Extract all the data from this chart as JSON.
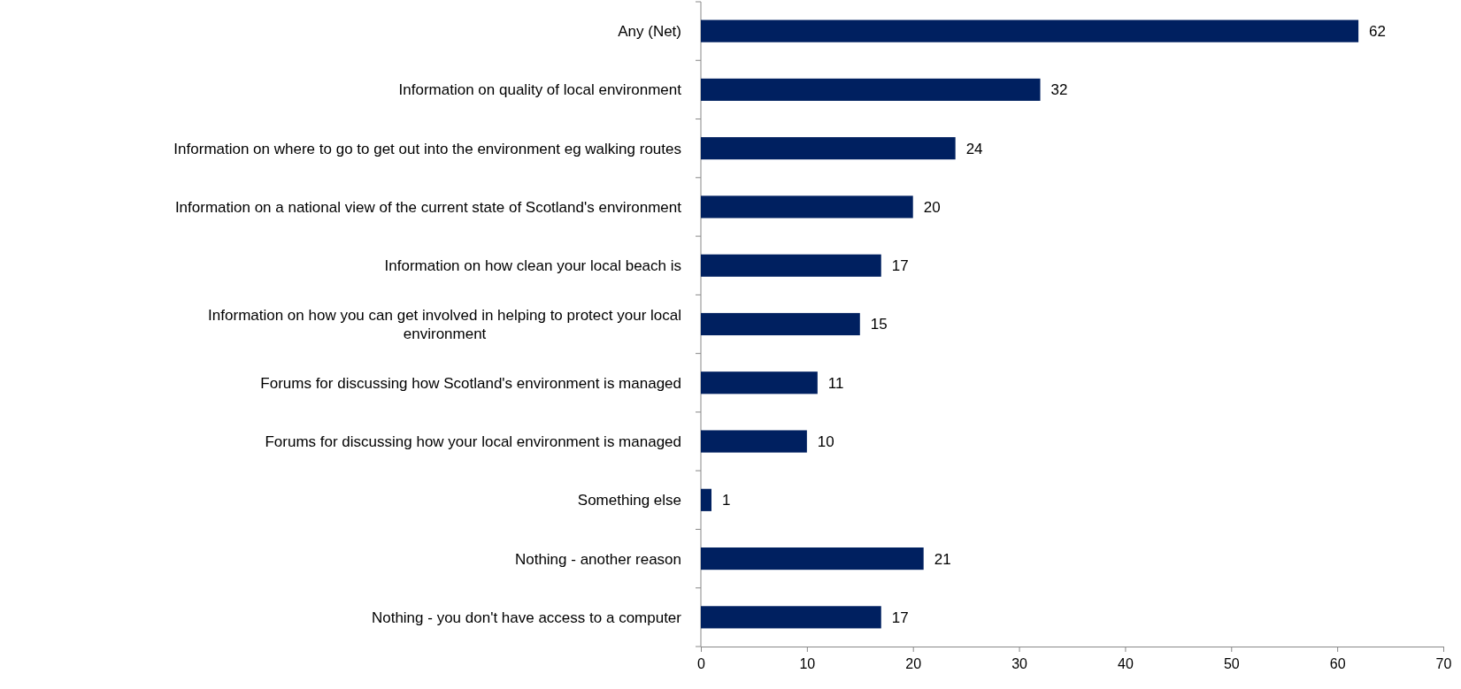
{
  "chart_data": {
    "type": "bar",
    "orientation": "horizontal",
    "categories": [
      "Any (Net)",
      "Information on quality of local environment",
      "Information on where to go to get out into the environment eg walking routes",
      "Information on a national view of the current state of Scotland's environment",
      "Information on how clean your local beach is",
      "Information on how you can get involved in helping to protect your local environment",
      "Forums for discussing how Scotland's environment is managed",
      "Forums for discussing how your local environment is managed",
      "Something else",
      "Nothing - another reason",
      "Nothing - you don't have access to a computer"
    ],
    "values": [
      62,
      32,
      24,
      20,
      17,
      15,
      11,
      10,
      1,
      21,
      17
    ],
    "color": "#002060",
    "xlim": [
      0,
      70
    ],
    "xticks": [
      0,
      10,
      20,
      30,
      40,
      50,
      60,
      70
    ],
    "data_labels": true
  }
}
